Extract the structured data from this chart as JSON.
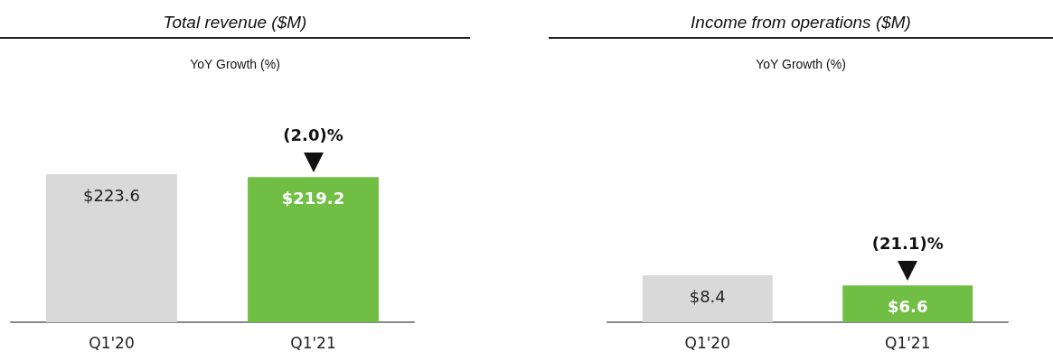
{
  "chart_data": [
    {
      "type": "bar",
      "title": "Total revenue ($M)",
      "subtitle": "YoY Growth (%)",
      "categories": [
        "Q1'20",
        "Q1'21"
      ],
      "values": [
        223.6,
        219.2
      ],
      "colors": [
        "#d9d9d9",
        "#70bf44"
      ],
      "value_labels": [
        "$223.6",
        "$219.2"
      ],
      "annotations": [
        {
          "text": "(2.0)%",
          "x": "Q1'21",
          "y": 219.2
        }
      ],
      "tick_labels": "x"
    },
    {
      "type": "bar",
      "title": "Income from operations ($M)",
      "subtitle": "YoY Growth (%)",
      "categories": [
        "Q1'20",
        "Q1'21"
      ],
      "values": [
        8.4,
        6.6
      ],
      "colors": [
        "#d9d9d9",
        "#70bf44"
      ],
      "value_labels": [
        "$8.4",
        "$6.6"
      ],
      "annotations": [
        {
          "text": "(21.1)%",
          "x": "Q1'21",
          "y": 6.6
        }
      ],
      "tick_labels": "x"
    }
  ]
}
